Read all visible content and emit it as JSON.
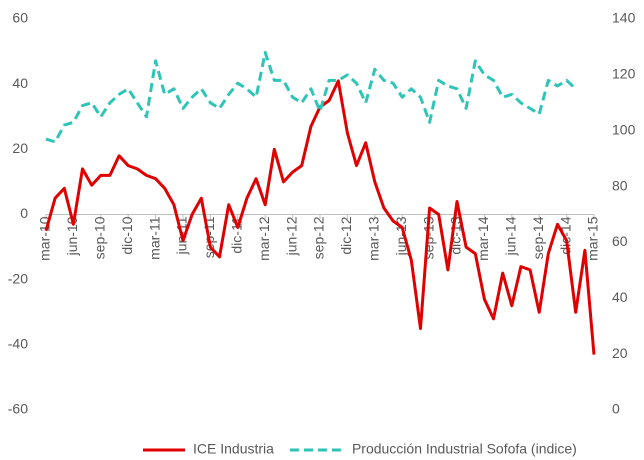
{
  "chart_data": {
    "type": "line",
    "categories": [
      "mar-10",
      null,
      null,
      "jun-10",
      null,
      null,
      "sep-10",
      null,
      null,
      "dic-10",
      null,
      null,
      "mar-11",
      null,
      null,
      "jun-11",
      null,
      null,
      "sep-11",
      null,
      null,
      "dic-11",
      null,
      null,
      "mar-12",
      null,
      null,
      "jun-12",
      null,
      null,
      "sep-12",
      null,
      null,
      "dic-12",
      null,
      null,
      "mar-13",
      null,
      null,
      "jun-13",
      null,
      null,
      "sep-13",
      null,
      null,
      "dic-13",
      null,
      null,
      "mar-14",
      null,
      null,
      "jun-14",
      null,
      null,
      "sep-14",
      null,
      null,
      "dic-14",
      null,
      null,
      "mar-15"
    ],
    "series": [
      {
        "name": "ICE Industria",
        "color": "#e00000",
        "dash": false,
        "axis": "y",
        "values": [
          -5,
          5,
          8,
          -3,
          14,
          9,
          12,
          12,
          18,
          15,
          14,
          12,
          11,
          8,
          3,
          -8,
          0,
          5,
          -10,
          -13,
          3,
          -4,
          5,
          11,
          3,
          20,
          10,
          13,
          15,
          27,
          33,
          35,
          41,
          25,
          15,
          22,
          10,
          2,
          -2,
          -4,
          -14,
          -35,
          2,
          0,
          -17,
          4,
          -10,
          -12,
          -26,
          -32,
          -18,
          -28,
          -16,
          -17,
          -30,
          -12,
          -3,
          -8,
          -30,
          -11,
          -43
        ]
      },
      {
        "name": "Producción Industrial Sofofa (indice)",
        "color": "#2ec4b6",
        "dash": true,
        "axis": "y2",
        "values": [
          97,
          96,
          102,
          103,
          109,
          110,
          105,
          110,
          113,
          115,
          110,
          105,
          125,
          113,
          115,
          108,
          112,
          115,
          110,
          108,
          113,
          117,
          115,
          112,
          128,
          118,
          118,
          112,
          110,
          115,
          107,
          118,
          118,
          120,
          117,
          110,
          122,
          118,
          117,
          112,
          115,
          112,
          103,
          118,
          116,
          115,
          108,
          125,
          120,
          118,
          112,
          113,
          110,
          108,
          106,
          118,
          116,
          118,
          115,
          null,
          null
        ]
      }
    ],
    "ylim": [
      -60,
      60
    ],
    "yticks": [
      -60,
      -40,
      -20,
      0,
      20,
      40,
      60
    ],
    "y2lim": [
      0,
      140
    ],
    "y2ticks": [
      0,
      20,
      40,
      60,
      80,
      100,
      120,
      140
    ],
    "grid": false,
    "legend": "bottom"
  }
}
